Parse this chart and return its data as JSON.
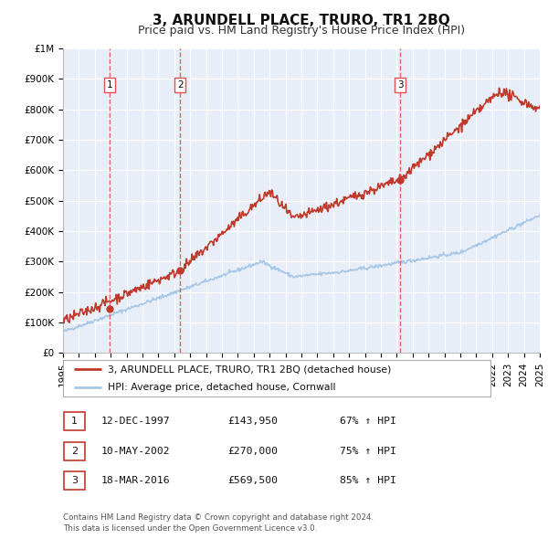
{
  "title": "3, ARUNDELL PLACE, TRURO, TR1 2BQ",
  "subtitle": "Price paid vs. HM Land Registry's House Price Index (HPI)",
  "xlim": [
    1995,
    2025
  ],
  "ylim": [
    0,
    1000000
  ],
  "yticks": [
    0,
    100000,
    200000,
    300000,
    400000,
    500000,
    600000,
    700000,
    800000,
    900000,
    1000000
  ],
  "ytick_labels": [
    "£0",
    "£100K",
    "£200K",
    "£300K",
    "£400K",
    "£500K",
    "£600K",
    "£700K",
    "£800K",
    "£900K",
    "£1M"
  ],
  "hpi_color": "#a8c8e8",
  "price_color": "#c0392b",
  "dashed_line_color": "#e05050",
  "plot_bg_color": "#e8eef8",
  "grid_color": "#ffffff",
  "sales": [
    {
      "date_dec": 1997.95,
      "price": 143950,
      "label": "1"
    },
    {
      "date_dec": 2002.36,
      "price": 270000,
      "label": "2"
    },
    {
      "date_dec": 2016.21,
      "price": 569500,
      "label": "3"
    }
  ],
  "legend_line_label": "3, ARUNDELL PLACE, TRURO, TR1 2BQ (detached house)",
  "legend_hpi_label": "HPI: Average price, detached house, Cornwall",
  "table_entries": [
    {
      "num": "1",
      "date": "12-DEC-1997",
      "price": "£143,950",
      "pct": "67% ↑ HPI"
    },
    {
      "num": "2",
      "date": "10-MAY-2002",
      "price": "£270,000",
      "pct": "75% ↑ HPI"
    },
    {
      "num": "3",
      "date": "18-MAR-2016",
      "price": "£569,500",
      "pct": "85% ↑ HPI"
    }
  ],
  "footnote": "Contains HM Land Registry data © Crown copyright and database right 2024.\nThis data is licensed under the Open Government Licence v3.0.",
  "title_fontsize": 11,
  "subtitle_fontsize": 9,
  "tick_fontsize": 7.5
}
